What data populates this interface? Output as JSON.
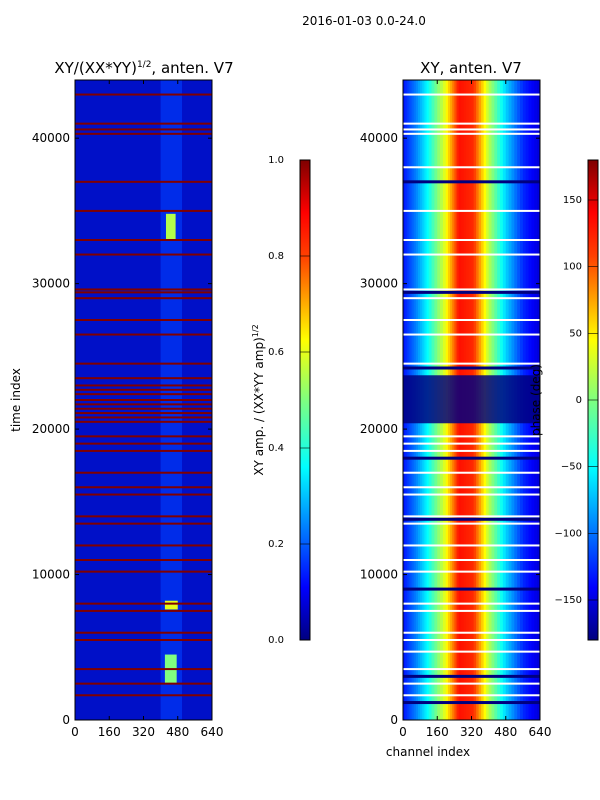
{
  "figure": {
    "suptitle": "2016-01-03 0.0-24.0"
  },
  "colors": {
    "background": "#ffffff",
    "jet": [
      "#00007f",
      "#0000ff",
      "#007fff",
      "#00ffff",
      "#7fff7f",
      "#ffff00",
      "#ff7f00",
      "#ff0000",
      "#7f0000"
    ]
  },
  "chart_data": [
    {
      "type": "heatmap",
      "title": "XY/(XX*YY)",
      "title_exponent": "1/2",
      "title_suffix": ", anten. V7",
      "xlabel": "",
      "ylabel": "time index",
      "xlim": [
        0,
        640
      ],
      "ylim": [
        0,
        44000
      ],
      "xticks": [
        "0",
        "160",
        "320",
        "480",
        "640"
      ],
      "yticks": [
        "0",
        "10000",
        "20000",
        "30000",
        "40000"
      ],
      "colorbar": {
        "label": "XY amp. / (XX*YY amp)",
        "label_exponent": "1/2",
        "range": [
          0.0,
          1.0
        ],
        "ticks": [
          "0.0",
          "0.2",
          "0.4",
          "0.6",
          "0.8",
          "1.0"
        ]
      },
      "background_value": 0.15,
      "flagged_rows_value": 1.0,
      "flagged_rows": [
        43000,
        41000,
        40600,
        40300,
        37000,
        35000,
        33000,
        32000,
        29600,
        29400,
        29000,
        27500,
        26500,
        24500,
        23500,
        23000,
        22700,
        22400,
        22000,
        21700,
        21400,
        21100,
        20800,
        20500,
        19500,
        19000,
        18500,
        17000,
        16000,
        15500,
        14000,
        13500,
        12000,
        11000,
        10200,
        8000,
        7500,
        6000,
        5500,
        3500,
        2500,
        1700
      ],
      "features": [
        {
          "x": [
            420,
            475
          ],
          "y": [
            2500,
            4500
          ],
          "value": 0.5
        },
        {
          "x": [
            425,
            470
          ],
          "y": [
            33000,
            34800
          ],
          "value": 0.55
        },
        {
          "x": [
            420,
            480
          ],
          "y": [
            7600,
            8200
          ],
          "value": 0.6
        }
      ]
    },
    {
      "type": "heatmap",
      "title": "XY, anten. V7",
      "xlabel": "channel index",
      "ylabel": "",
      "xlim": [
        0,
        640
      ],
      "ylim": [
        0,
        44000
      ],
      "xticks": [
        "0",
        "160",
        "320",
        "480",
        "640"
      ],
      "yticks": [
        "0",
        "10000",
        "20000",
        "30000",
        "40000"
      ],
      "colorbar": {
        "label": "phase (deg)",
        "range": [
          -180,
          180
        ],
        "ticks": [
          "−150",
          "−100",
          "−50",
          "0",
          "50",
          "100",
          "150"
        ]
      },
      "channel_phase_profile": [
        {
          "channel": 0,
          "value": -130
        },
        {
          "channel": 60,
          "value": -90
        },
        {
          "channel": 120,
          "value": -40
        },
        {
          "channel": 200,
          "value": 40
        },
        {
          "channel": 260,
          "value": 130
        },
        {
          "channel": 330,
          "value": 120
        },
        {
          "channel": 400,
          "value": 20
        },
        {
          "channel": 480,
          "value": -60
        },
        {
          "channel": 560,
          "value": -120
        },
        {
          "channel": 640,
          "value": -150
        }
      ],
      "flagged_rows_white": [
        43000,
        41000,
        40600,
        40300,
        38000,
        35000,
        33000,
        32000,
        29600,
        29000,
        27500,
        26500,
        24500,
        19500,
        19000,
        18500,
        17000,
        16000,
        15500,
        14000,
        13500,
        12000,
        11000,
        10200,
        8000,
        7500,
        6000,
        5500,
        4700,
        3500,
        2500,
        1700
      ],
      "flagged_band_dark": [
        [
          20400,
          23700
        ]
      ],
      "flagged_rows_dark": [
        37000,
        29400,
        24200,
        18000,
        13800,
        9000,
        3000,
        1200
      ]
    }
  ]
}
